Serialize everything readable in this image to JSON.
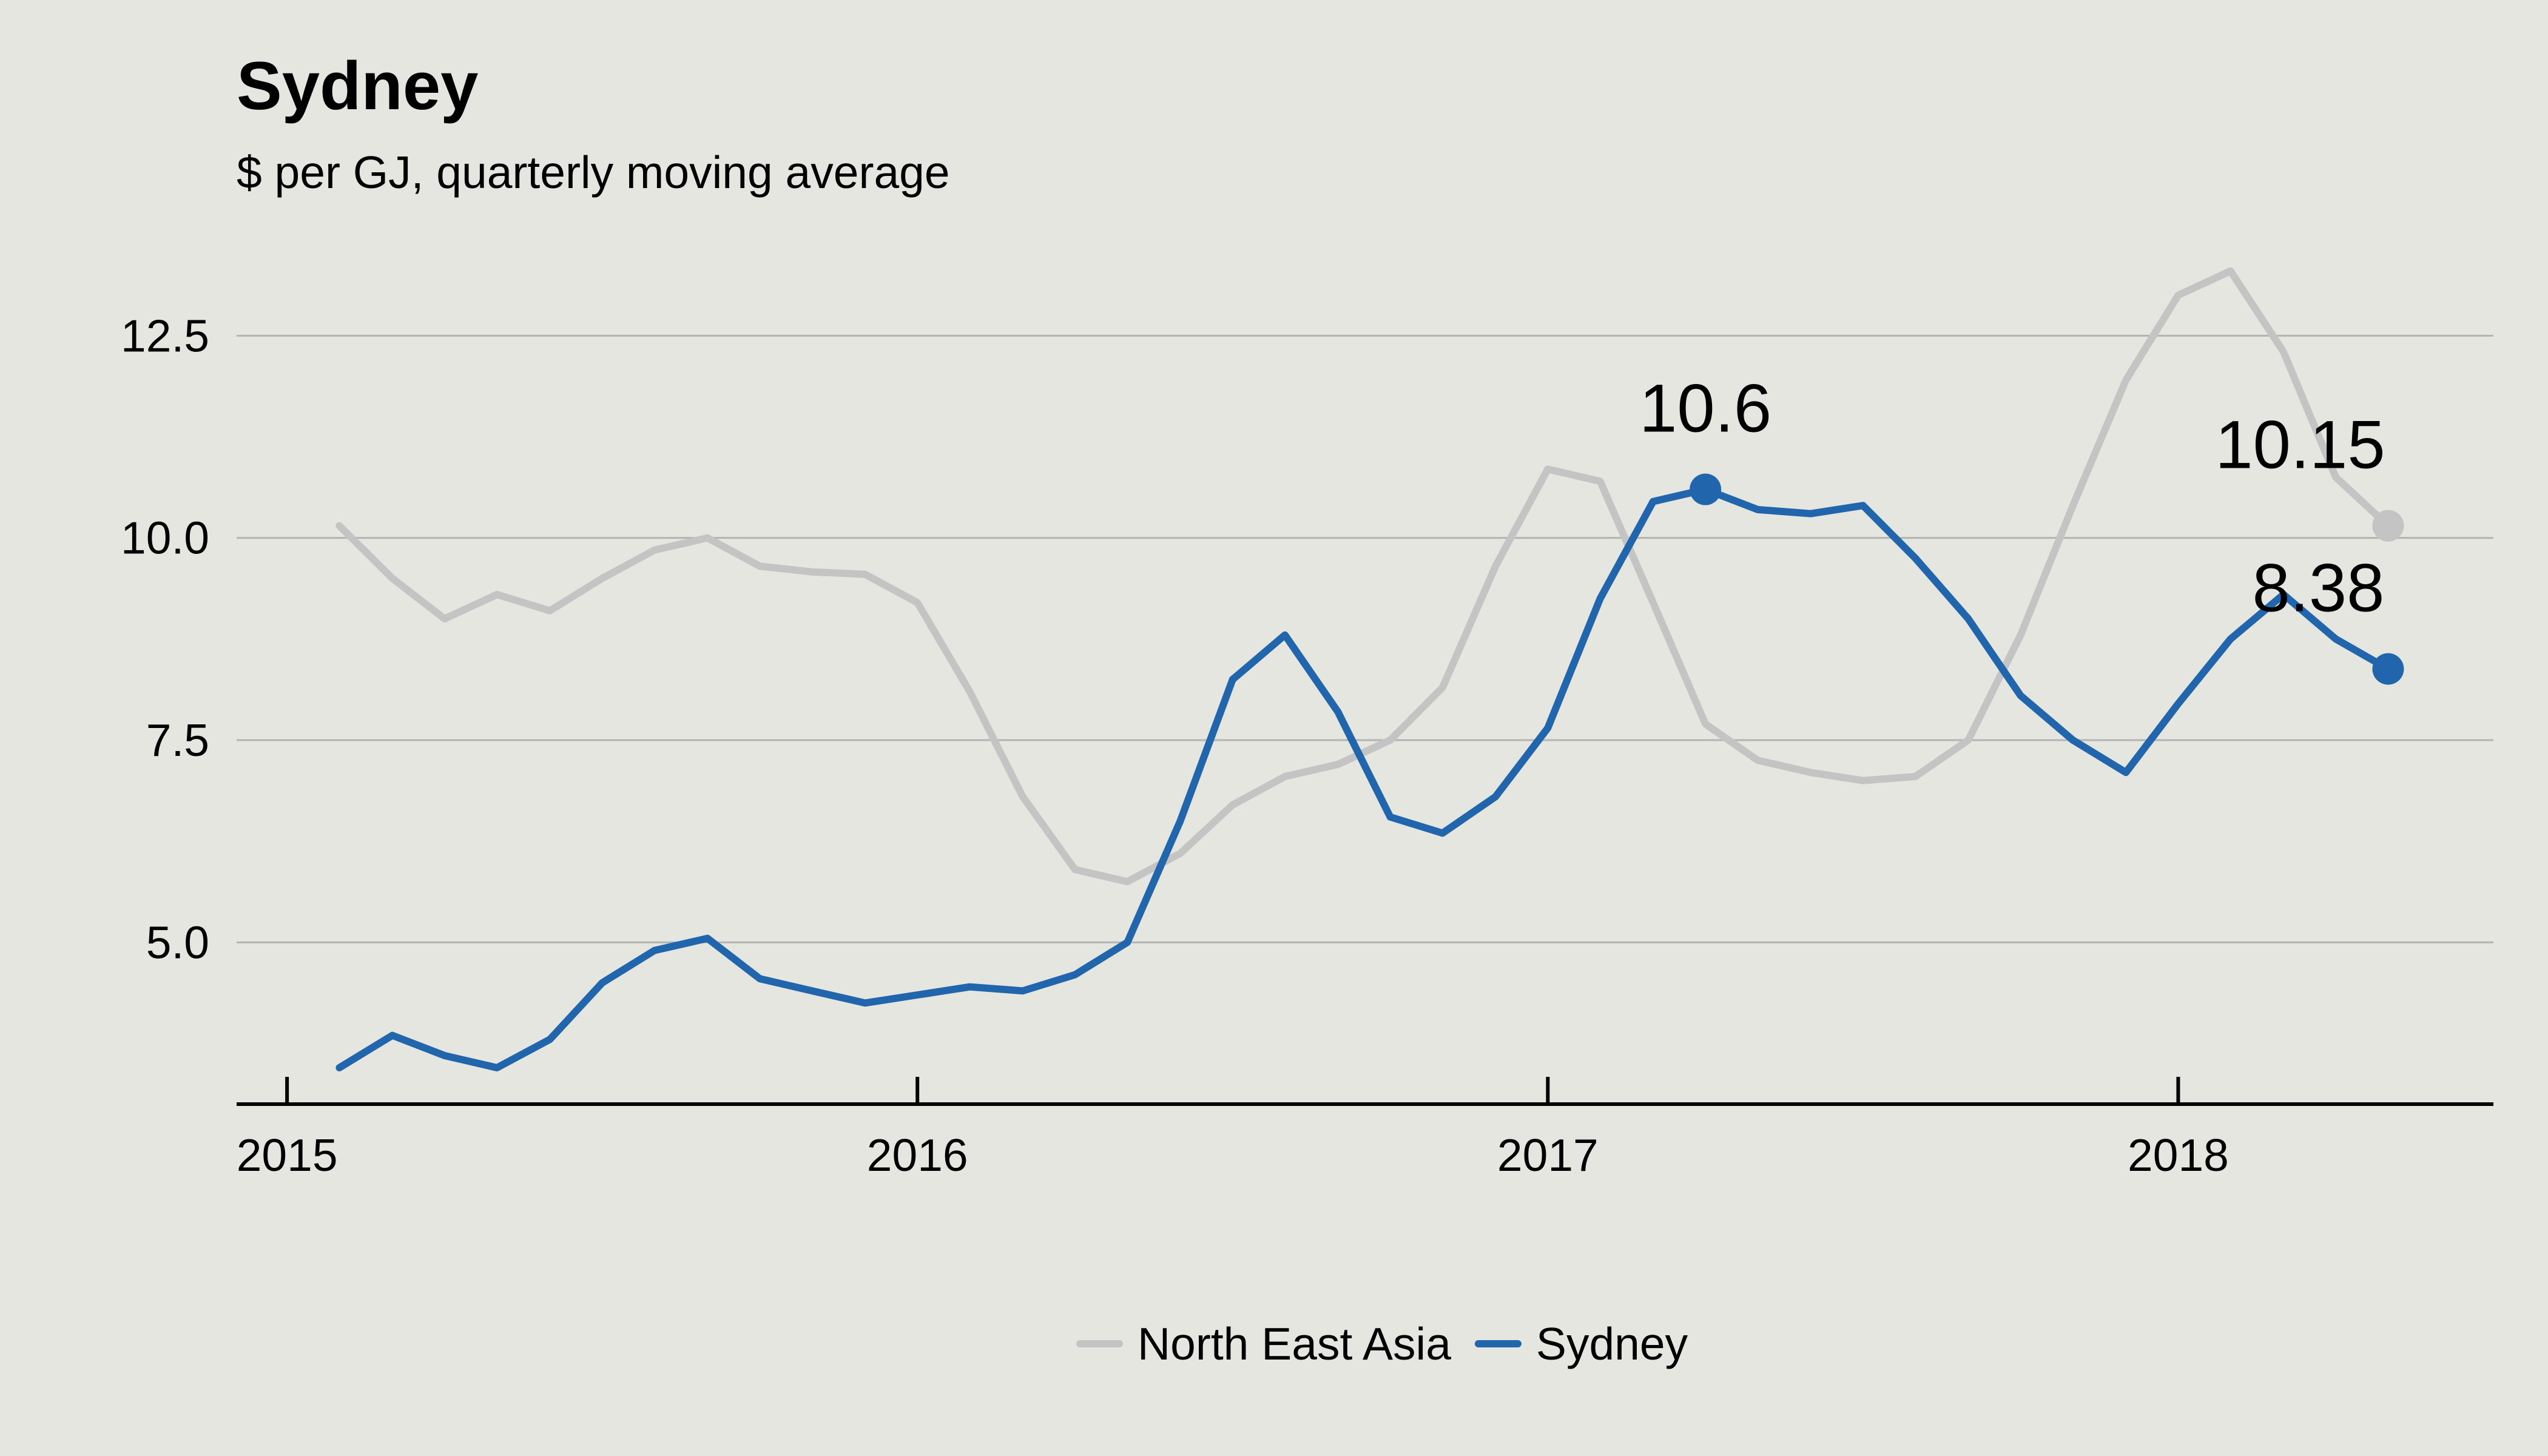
{
  "chart_data": {
    "type": "line",
    "title": "Sydney",
    "subtitle": "$ per GJ, quarterly moving average",
    "xlabel": "",
    "ylabel": "",
    "xlim": [
      2014.92,
      2018.5
    ],
    "ylim": [
      3.0,
      13.5
    ],
    "x_ticks": [
      2015,
      2016,
      2017,
      2018
    ],
    "x_tick_labels": [
      "2015",
      "2016",
      "2017",
      "2018"
    ],
    "y_ticks": [
      5.0,
      7.5,
      10.0,
      12.5
    ],
    "y_tick_labels": [
      "5.0",
      "7.5",
      "10.0",
      "12.5"
    ],
    "grid": true,
    "legend_position": "bottom-center",
    "x": [
      2015.083,
      2015.167,
      2015.25,
      2015.333,
      2015.417,
      2015.5,
      2015.583,
      2015.667,
      2015.75,
      2015.833,
      2015.917,
      2016.0,
      2016.083,
      2016.167,
      2016.25,
      2016.333,
      2016.417,
      2016.5,
      2016.583,
      2016.667,
      2016.75,
      2016.833,
      2016.917,
      2017.0,
      2017.083,
      2017.167,
      2017.25,
      2017.333,
      2017.417,
      2017.5,
      2017.583,
      2017.667,
      2017.75,
      2017.833,
      2017.917,
      2018.0,
      2018.083,
      2018.167,
      2018.25,
      2018.333
    ],
    "series": [
      {
        "name": "North East Asia",
        "color": "#c4c4c4",
        "values": [
          10.15,
          9.5,
          9.0,
          9.3,
          9.1,
          9.5,
          9.85,
          10.0,
          9.65,
          9.58,
          9.55,
          9.2,
          8.1,
          6.8,
          5.9,
          5.75,
          6.1,
          6.7,
          7.05,
          7.2,
          7.5,
          8.15,
          9.65,
          10.85,
          10.7,
          9.2,
          7.7,
          7.25,
          7.1,
          7.0,
          7.05,
          7.5,
          8.8,
          10.4,
          11.95,
          13.0,
          13.3,
          12.3,
          10.75,
          10.15
        ]
      },
      {
        "name": "Sydney",
        "color": "#2166ac",
        "values": [
          3.45,
          3.85,
          3.6,
          3.45,
          3.8,
          4.5,
          4.9,
          5.05,
          4.55,
          4.4,
          4.25,
          4.35,
          4.45,
          4.4,
          4.6,
          5.0,
          6.5,
          8.25,
          8.8,
          7.85,
          6.55,
          6.35,
          6.8,
          7.65,
          9.25,
          10.45,
          10.6,
          10.35,
          10.3,
          10.4,
          9.75,
          9.0,
          8.05,
          7.5,
          7.1,
          7.95,
          8.75,
          9.3,
          8.75,
          8.38
        ]
      }
    ],
    "annotations": [
      {
        "series": "Sydney",
        "x": 2017.25,
        "y": 10.6,
        "label": "10.6"
      },
      {
        "series": "North East Asia",
        "x": 2018.333,
        "y": 10.15,
        "label": "10.15"
      },
      {
        "series": "Sydney",
        "x": 2018.333,
        "y": 8.38,
        "label": "8.38"
      }
    ]
  }
}
